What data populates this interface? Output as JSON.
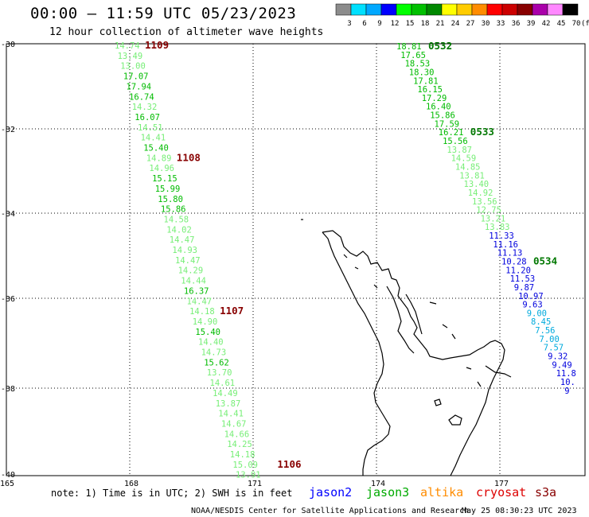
{
  "title": "00:00 — 11:59 UTC 05/23/2023",
  "subtitle": "12 hour collection of altimeter wave heights",
  "note": "note: 1) Time is in UTC; 2) SWH is in feet",
  "credit": "NOAA/NESDIS Center for Satellite Applications and Research",
  "timestamp": "May 25 08:30:23 UTC 2023",
  "legend": {
    "unit": "(ft)",
    "entries": [
      {
        "label": "3",
        "color": "#8c8c8c"
      },
      {
        "label": "6",
        "color": "#00e0ff"
      },
      {
        "label": "9",
        "color": "#00a8ff"
      },
      {
        "label": "12",
        "color": "#0000ff"
      },
      {
        "label": "15",
        "color": "#00ff00"
      },
      {
        "label": "18",
        "color": "#00c000"
      },
      {
        "label": "21",
        "color": "#008800"
      },
      {
        "label": "24",
        "color": "#ffff00"
      },
      {
        "label": "27",
        "color": "#ffcc00"
      },
      {
        "label": "30",
        "color": "#ff8c00"
      },
      {
        "label": "33",
        "color": "#ff0000"
      },
      {
        "label": "36",
        "color": "#cc0000"
      },
      {
        "label": "39",
        "color": "#880000"
      },
      {
        "label": "42",
        "color": "#aa00aa"
      },
      {
        "label": "45",
        "color": "#ff88ff"
      },
      {
        "label": "70",
        "color": "#000000"
      }
    ]
  },
  "satellites": [
    {
      "name": "jason2",
      "color": "#0000ff"
    },
    {
      "name": "jason3",
      "color": "#00aa00"
    },
    {
      "name": "altika",
      "color": "#ff8c00"
    },
    {
      "name": "cryosat",
      "color": "#dd0000"
    },
    {
      "name": "s3a",
      "color": "#880000"
    }
  ],
  "axes": {
    "lat_labels": [
      "-30",
      "-32",
      "-34",
      "-36",
      "-38",
      "-40"
    ],
    "lon_labels": [
      "165",
      "168",
      "171",
      "174",
      "177"
    ]
  },
  "colors": {
    "light_green": "#77ee77",
    "green": "#00bb00",
    "dark_green": "#007700",
    "blue": "#0000dd",
    "cyan": "#00aadd",
    "pass_label_red": "#880000",
    "pass_label_green": "#007700"
  },
  "tracks": [
    {
      "name": "west-track",
      "points": [
        {
          "v": "14.74",
          "c": "light_green"
        },
        {
          "v": "13.49",
          "c": "light_green"
        },
        {
          "v": "13.00",
          "c": "light_green"
        },
        {
          "v": "17.07",
          "c": "green"
        },
        {
          "v": "17.94",
          "c": "green"
        },
        {
          "v": "16.74",
          "c": "green"
        },
        {
          "v": "14.32",
          "c": "light_green"
        },
        {
          "v": "16.07",
          "c": "green"
        },
        {
          "v": "14.51",
          "c": "light_green"
        },
        {
          "v": "14.41",
          "c": "light_green"
        },
        {
          "v": "15.40",
          "c": "green"
        },
        {
          "v": "14.89",
          "c": "light_green"
        },
        {
          "v": "14.96",
          "c": "light_green"
        },
        {
          "v": "15.15",
          "c": "green"
        },
        {
          "v": "15.99",
          "c": "green"
        },
        {
          "v": "15.80",
          "c": "green"
        },
        {
          "v": "15.86",
          "c": "green"
        },
        {
          "v": "14.58",
          "c": "light_green"
        },
        {
          "v": "14.02",
          "c": "light_green"
        },
        {
          "v": "14.47",
          "c": "light_green"
        },
        {
          "v": "14.93",
          "c": "light_green"
        },
        {
          "v": "14.47",
          "c": "light_green"
        },
        {
          "v": "14.29",
          "c": "light_green"
        },
        {
          "v": "14.44",
          "c": "light_green"
        },
        {
          "v": "16.37",
          "c": "green"
        },
        {
          "v": "14.47",
          "c": "light_green"
        },
        {
          "v": "14.18",
          "c": "light_green"
        },
        {
          "v": "14.90",
          "c": "light_green"
        },
        {
          "v": "15.40",
          "c": "green"
        },
        {
          "v": "14.40",
          "c": "light_green"
        },
        {
          "v": "14.73",
          "c": "light_green"
        },
        {
          "v": "15.62",
          "c": "green"
        },
        {
          "v": "13.70",
          "c": "light_green"
        },
        {
          "v": "14.61",
          "c": "light_green"
        },
        {
          "v": "14.49",
          "c": "light_green"
        },
        {
          "v": "13.87",
          "c": "light_green"
        },
        {
          "v": "14.41",
          "c": "light_green"
        },
        {
          "v": "14.67",
          "c": "light_green"
        },
        {
          "v": "14.66",
          "c": "light_green"
        },
        {
          "v": "14.25",
          "c": "light_green"
        },
        {
          "v": "14.18",
          "c": "light_green"
        },
        {
          "v": "15.09",
          "c": "light_green"
        },
        {
          "v": "13.91",
          "c": "light_green"
        }
      ],
      "pass_labels": [
        {
          "t": "1109",
          "at": 0
        },
        {
          "t": "1108",
          "at": 11
        },
        {
          "t": "1107",
          "at": 26
        },
        {
          "t": "1106",
          "at": 41
        }
      ]
    },
    {
      "name": "east-track",
      "points": [
        {
          "v": "18.81",
          "c": "green"
        },
        {
          "v": "17.65",
          "c": "green"
        },
        {
          "v": "18.53",
          "c": "green"
        },
        {
          "v": "18.30",
          "c": "green"
        },
        {
          "v": "17.81",
          "c": "green"
        },
        {
          "v": "16.15",
          "c": "green"
        },
        {
          "v": "17.29",
          "c": "green"
        },
        {
          "v": "16.40",
          "c": "green"
        },
        {
          "v": "15.86",
          "c": "green"
        },
        {
          "v": "17.59",
          "c": "green"
        },
        {
          "v": "16.21",
          "c": "green"
        },
        {
          "v": "15.56",
          "c": "green"
        },
        {
          "v": "13.87",
          "c": "light_green"
        },
        {
          "v": "14.59",
          "c": "light_green"
        },
        {
          "v": "14.85",
          "c": "light_green"
        },
        {
          "v": "13.81",
          "c": "light_green"
        },
        {
          "v": "13.40",
          "c": "light_green"
        },
        {
          "v": "14.92",
          "c": "light_green"
        },
        {
          "v": "13.56",
          "c": "light_green"
        },
        {
          "v": "12.75",
          "c": "light_green"
        },
        {
          "v": "13.21",
          "c": "light_green"
        },
        {
          "v": "13.83",
          "c": "light_green"
        },
        {
          "v": "11.33",
          "c": "blue"
        },
        {
          "v": "11.16",
          "c": "blue"
        },
        {
          "v": "11.13",
          "c": "blue"
        },
        {
          "v": "10.28",
          "c": "blue"
        },
        {
          "v": "11.20",
          "c": "blue"
        },
        {
          "v": "11.53",
          "c": "blue"
        },
        {
          "v": "9.87",
          "c": "blue"
        },
        {
          "v": "10.97",
          "c": "blue"
        },
        {
          "v": "9.63",
          "c": "blue"
        },
        {
          "v": "9.00",
          "c": "cyan"
        },
        {
          "v": "8.45",
          "c": "cyan"
        },
        {
          "v": "7.56",
          "c": "cyan"
        },
        {
          "v": "7.00",
          "c": "cyan"
        },
        {
          "v": "7.57",
          "c": "cyan"
        },
        {
          "v": "9.32",
          "c": "blue"
        },
        {
          "v": "9.49",
          "c": "blue"
        },
        {
          "v": "11.8",
          "c": "blue"
        },
        {
          "v": "10.",
          "c": "blue"
        },
        {
          "v": "9",
          "c": "blue"
        }
      ],
      "pass_labels": [
        {
          "t": "0532",
          "at": 0
        },
        {
          "t": "0533",
          "at": 10
        },
        {
          "t": "0534",
          "at": 25
        }
      ]
    }
  ]
}
